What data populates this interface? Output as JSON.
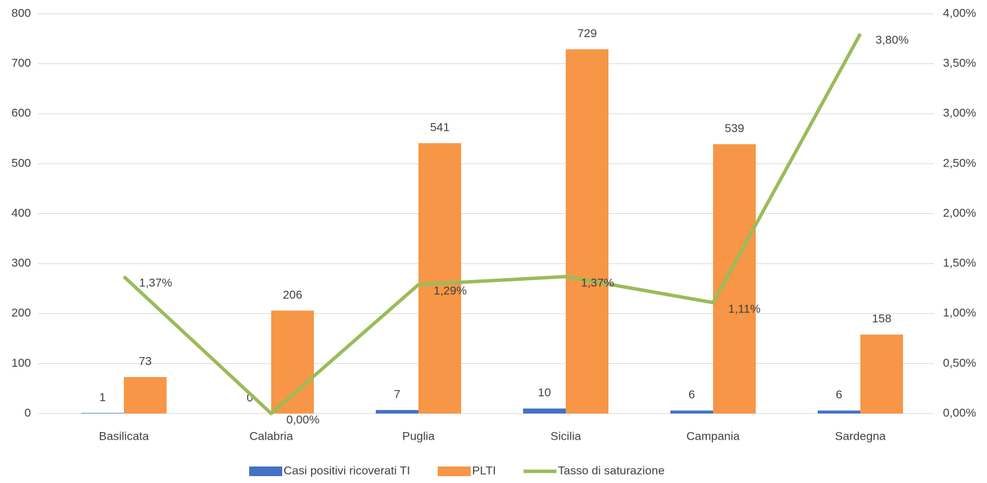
{
  "chart_data": {
    "type": "bar",
    "categories": [
      "Basilicata",
      "Calabria",
      "Puglia",
      "Sicilia",
      "Campania",
      "Sardegna"
    ],
    "series": [
      {
        "name": "Casi positivi ricoverati TI",
        "type": "bar",
        "color": "#4472c4",
        "values": [
          1,
          0,
          7,
          10,
          6,
          6
        ]
      },
      {
        "name": "PLTI",
        "type": "bar",
        "color": "#f79646",
        "values": [
          73,
          206,
          541,
          729,
          539,
          158
        ]
      },
      {
        "name": "Tasso di saturazione",
        "type": "line",
        "axis": "y2",
        "color": "#9bbb59",
        "values": [
          1.37,
          0,
          1.29,
          1.37,
          1.11,
          3.8
        ],
        "value_labels": [
          "1,37%",
          "0,00%",
          "1,29%",
          "1,37%",
          "1,11%",
          "3,80%"
        ]
      }
    ],
    "ylim": [
      0,
      800
    ],
    "yticks": [
      0,
      100,
      200,
      300,
      400,
      500,
      600,
      700,
      800
    ],
    "y2lim": [
      0,
      4
    ],
    "y2ticks": [
      {
        "value": 0,
        "label": "0,00%"
      },
      {
        "value": 0.5,
        "label": "0,50%"
      },
      {
        "value": 1,
        "label": "1,00%"
      },
      {
        "value": 1.5,
        "label": "1,50%"
      },
      {
        "value": 2,
        "label": "2,00%"
      },
      {
        "value": 2.5,
        "label": "2,50%"
      },
      {
        "value": 3,
        "label": "3,00%"
      },
      {
        "value": 3.5,
        "label": "3,50%"
      },
      {
        "value": 4,
        "label": "4,00%"
      }
    ],
    "grid": true,
    "legend": "bottom"
  }
}
